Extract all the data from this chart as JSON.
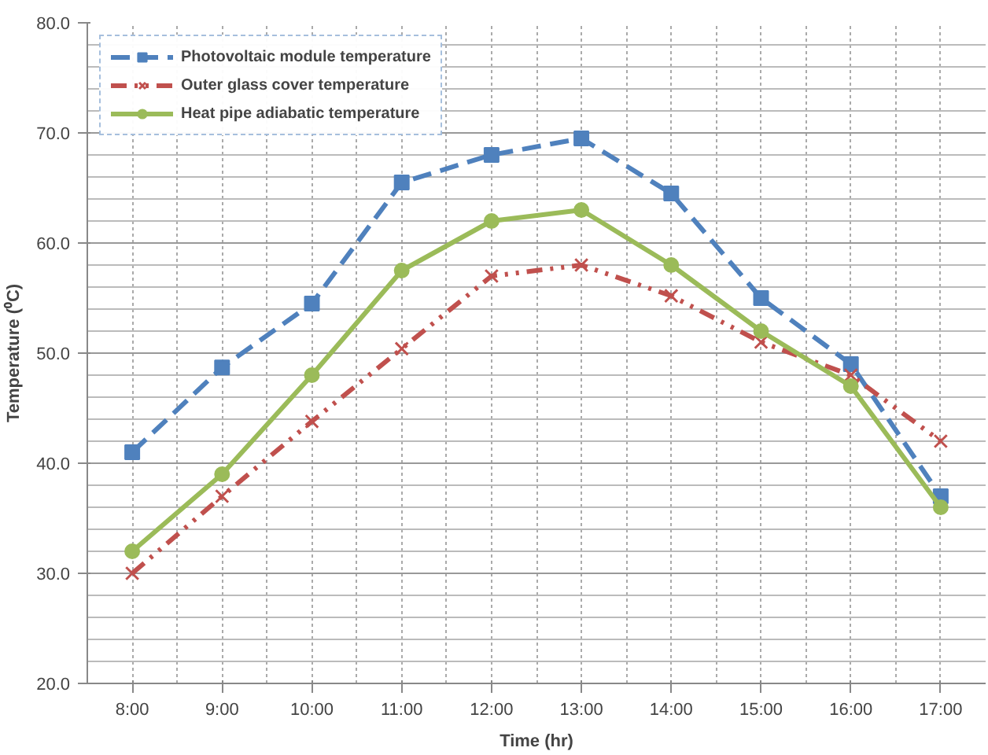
{
  "chart_data": {
    "type": "line",
    "xlabel": "Time (hr)",
    "ylabel": "Temperature (⁰C)",
    "categories": [
      "8:00",
      "9:00",
      "10:00",
      "11:00",
      "12:00",
      "13:00",
      "14:00",
      "15:00",
      "16:00",
      "17:00"
    ],
    "ylim": [
      20,
      80
    ],
    "yticks": [
      {
        "value": 20,
        "label": "20.0"
      },
      {
        "value": 30,
        "label": "30.0"
      },
      {
        "value": 40,
        "label": "40.0"
      },
      {
        "value": 50,
        "label": "50.0"
      },
      {
        "value": 60,
        "label": "60.0"
      },
      {
        "value": 70,
        "label": "70.0"
      },
      {
        "value": 80,
        "label": "80.0"
      }
    ],
    "grid": true,
    "legend": "top left",
    "series": [
      {
        "name": "Photovoltaic module temperature",
        "color": "#4f81bd",
        "marker": "square",
        "line_style": "dashed",
        "values": [
          41,
          48.7,
          54.5,
          65.5,
          68,
          69.5,
          64.5,
          55,
          49,
          37
        ]
      },
      {
        "name": "Outer glass cover temperature",
        "color": "#c0504d",
        "marker": "cross",
        "line_style": "dashdot",
        "values": [
          30,
          37,
          43.8,
          50.4,
          57,
          58,
          55.2,
          51,
          48,
          42
        ]
      },
      {
        "name": "Heat pipe adiabatic temperature",
        "color": "#9bbb59",
        "marker": "circle",
        "line_style": "solid",
        "values": [
          32,
          39,
          48,
          57.5,
          62,
          63,
          58,
          52,
          47,
          36
        ]
      }
    ]
  }
}
